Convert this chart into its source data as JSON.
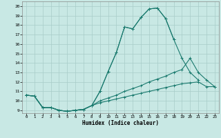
{
  "bg_color": "#c8e8e4",
  "grid_color": "#a8ccc8",
  "line_color": "#1a7a6e",
  "xlabel": "Humidex (Indice chaleur)",
  "xlim": [
    -0.5,
    23.5
  ],
  "ylim": [
    8.7,
    20.5
  ],
  "yticks": [
    9,
    10,
    11,
    12,
    13,
    14,
    15,
    16,
    17,
    18,
    19,
    20
  ],
  "xticks": [
    0,
    1,
    2,
    3,
    4,
    5,
    6,
    7,
    8,
    9,
    10,
    11,
    12,
    13,
    14,
    15,
    16,
    17,
    18,
    19,
    20,
    21,
    22,
    23
  ],
  "curves": [
    {
      "x": [
        0,
        1,
        2,
        3,
        4,
        5,
        6,
        7,
        8,
        9,
        10,
        11,
        12,
        13,
        14,
        15,
        16,
        17,
        18
      ],
      "y": [
        10.6,
        10.5,
        9.3,
        9.3,
        9.0,
        8.9,
        9.0,
        9.1,
        9.5,
        11.0,
        13.1,
        15.1,
        17.8,
        17.6,
        18.8,
        19.7,
        19.8,
        18.7,
        16.5
      ]
    },
    {
      "x": [
        0,
        1,
        2,
        3,
        4,
        5,
        6,
        7,
        8,
        9,
        10,
        11,
        12,
        13,
        14,
        15,
        16,
        17,
        18,
        19,
        20,
        21
      ],
      "y": [
        10.6,
        10.5,
        9.3,
        9.3,
        9.0,
        8.9,
        9.0,
        9.1,
        9.5,
        11.0,
        13.1,
        15.1,
        17.8,
        17.6,
        18.8,
        19.7,
        19.8,
        18.7,
        16.5,
        14.5,
        13.0,
        12.2
      ]
    },
    {
      "x": [
        0,
        1,
        2,
        3,
        4,
        5,
        6,
        7,
        8,
        9,
        10,
        11,
        12,
        13,
        14,
        15,
        16,
        17,
        18,
        19,
        20,
        21,
        22,
        23
      ],
      "y": [
        10.6,
        10.5,
        9.3,
        9.3,
        9.0,
        8.9,
        9.0,
        9.1,
        9.5,
        10.0,
        10.3,
        10.6,
        11.0,
        11.3,
        11.6,
        12.0,
        12.3,
        12.6,
        13.0,
        13.3,
        14.5,
        13.0,
        12.2,
        11.5
      ]
    },
    {
      "x": [
        0,
        1,
        2,
        3,
        4,
        5,
        6,
        7,
        8,
        9,
        10,
        11,
        12,
        13,
        14,
        15,
        16,
        17,
        18,
        19,
        20,
        21,
        22,
        23
      ],
      "y": [
        10.6,
        10.5,
        9.3,
        9.3,
        9.0,
        8.9,
        9.0,
        9.1,
        9.5,
        9.8,
        10.0,
        10.2,
        10.4,
        10.6,
        10.8,
        11.0,
        11.2,
        11.4,
        11.6,
        11.8,
        11.9,
        12.0,
        11.5,
        11.5
      ]
    }
  ]
}
